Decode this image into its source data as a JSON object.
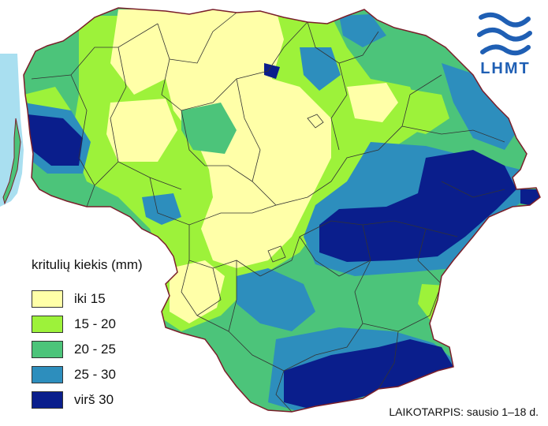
{
  "brand": {
    "logo_text": "LHMT",
    "logo_color": "#1f5fb4"
  },
  "legend": {
    "title": "kritulių kiekis (mm)",
    "items": [
      {
        "label": "iki 15",
        "color": "#ffffa8"
      },
      {
        "label": "15 - 20",
        "color": "#9df23a"
      },
      {
        "label": "20 - 25",
        "color": "#4cc47a"
      },
      {
        "label": "25 - 30",
        "color": "#2d8ebd"
      },
      {
        "label": "virš 30",
        "color": "#0a1e8c"
      }
    ]
  },
  "period": "LAIKOTARPIS: sausio 1–18 d.",
  "colors": {
    "sea": "#a9dff0",
    "border": "#7a1f2a",
    "district": "#333333"
  }
}
